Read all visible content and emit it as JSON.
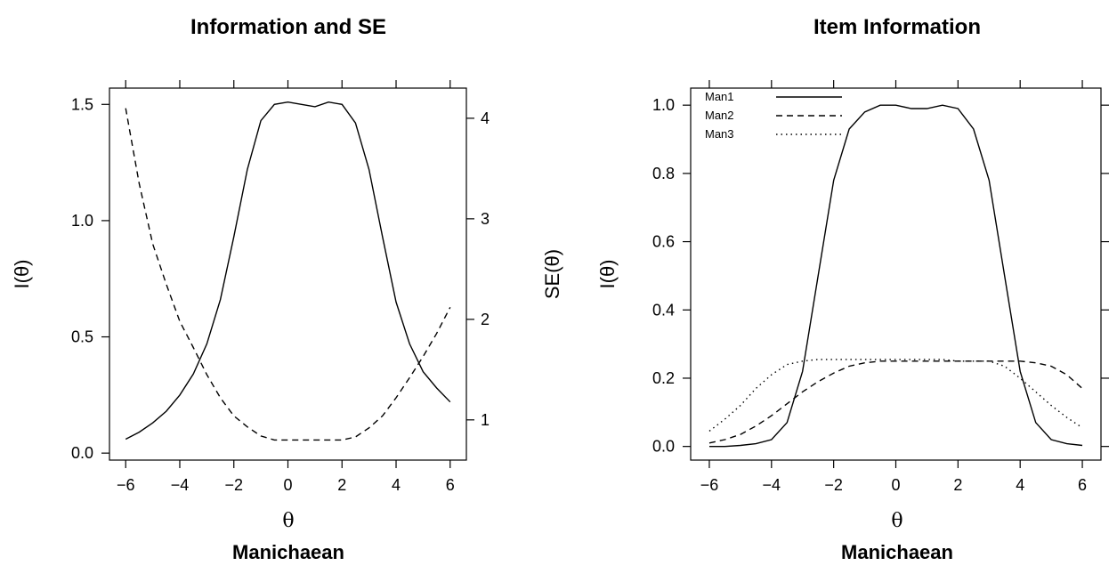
{
  "chart_data": [
    {
      "type": "line",
      "title": "Information and SE",
      "xlabel": "θ",
      "sublabel": "Manichaean",
      "ylabel": "I(θ)",
      "y2label": "SE(θ)",
      "xlim": [
        -6.6,
        6.6
      ],
      "ylim": [
        -0.03,
        1.57
      ],
      "y2lim": [
        0.6,
        4.3
      ],
      "xticks": [
        -6,
        -4,
        -2,
        0,
        2,
        4,
        6
      ],
      "xtick_labels": [
        "−6",
        "−4",
        "−2",
        "0",
        "2",
        "4",
        "6"
      ],
      "yticks": [
        0.0,
        0.5,
        1.0,
        1.5
      ],
      "ytick_labels": [
        "0.0",
        "0.5",
        "1.0",
        "1.5"
      ],
      "y2ticks": [
        1,
        2,
        3,
        4
      ],
      "y2tick_labels": [
        "1",
        "2",
        "3",
        "4"
      ],
      "grid": false,
      "x": [
        -6,
        -5.5,
        -5,
        -4.5,
        -4,
        -3.5,
        -3,
        -2.5,
        -2,
        -1.5,
        -1,
        -0.5,
        0,
        0.5,
        1,
        1.5,
        2,
        2.5,
        3,
        3.5,
        4,
        4.5,
        5,
        5.5,
        6
      ],
      "series": [
        {
          "style": "solid",
          "axis": "left",
          "values": [
            0.06,
            0.09,
            0.13,
            0.18,
            0.25,
            0.34,
            0.47,
            0.66,
            0.93,
            1.22,
            1.43,
            1.5,
            1.51,
            1.5,
            1.49,
            1.51,
            1.5,
            1.42,
            1.22,
            0.93,
            0.65,
            0.47,
            0.35,
            0.28,
            0.22
          ]
        },
        {
          "style": "dashed",
          "axis": "right",
          "values": [
            4.1,
            3.35,
            2.75,
            2.35,
            1.98,
            1.72,
            1.45,
            1.22,
            1.04,
            0.93,
            0.84,
            0.8,
            0.8,
            0.8,
            0.8,
            0.8,
            0.8,
            0.83,
            0.92,
            1.04,
            1.22,
            1.42,
            1.63,
            1.86,
            2.12
          ]
        }
      ]
    },
    {
      "type": "line",
      "title": "Item Information",
      "xlabel": "θ",
      "sublabel": "Manichaean",
      "ylabel": "I(θ)",
      "xlim": [
        -6.6,
        6.6
      ],
      "ylim": [
        -0.04,
        1.05
      ],
      "xticks": [
        -6,
        -4,
        -2,
        0,
        2,
        4,
        6
      ],
      "xtick_labels": [
        "−6",
        "−4",
        "−2",
        "0",
        "2",
        "4",
        "6"
      ],
      "yticks": [
        0.0,
        0.2,
        0.4,
        0.6,
        0.8,
        1.0
      ],
      "ytick_labels": [
        "0.0",
        "0.2",
        "0.4",
        "0.6",
        "0.8",
        "1.0"
      ],
      "grid": false,
      "legend": "top-left",
      "x": [
        -6,
        -5.5,
        -5,
        -4.5,
        -4,
        -3.5,
        -3,
        -2.5,
        -2,
        -1.5,
        -1,
        -0.5,
        0,
        0.5,
        1,
        1.5,
        2,
        2.5,
        3,
        3.5,
        4,
        4.5,
        5,
        5.5,
        6
      ],
      "series": [
        {
          "name": "Man1",
          "style": "solid",
          "values": [
            0.0,
            0.0,
            0.003,
            0.008,
            0.02,
            0.07,
            0.22,
            0.5,
            0.78,
            0.93,
            0.98,
            1.0,
            1.0,
            0.99,
            0.99,
            1.0,
            0.99,
            0.93,
            0.78,
            0.5,
            0.22,
            0.07,
            0.02,
            0.008,
            0.003
          ]
        },
        {
          "name": "Man2",
          "style": "dashed",
          "values": [
            0.01,
            0.02,
            0.035,
            0.06,
            0.09,
            0.125,
            0.16,
            0.19,
            0.215,
            0.235,
            0.245,
            0.25,
            0.25,
            0.25,
            0.25,
            0.25,
            0.25,
            0.25,
            0.25,
            0.25,
            0.25,
            0.245,
            0.235,
            0.21,
            0.17
          ]
        },
        {
          "name": "Man3",
          "style": "dotted",
          "values": [
            0.045,
            0.08,
            0.12,
            0.17,
            0.21,
            0.24,
            0.25,
            0.255,
            0.255,
            0.255,
            0.255,
            0.255,
            0.255,
            0.255,
            0.255,
            0.255,
            0.25,
            0.25,
            0.25,
            0.235,
            0.2,
            0.16,
            0.12,
            0.085,
            0.055
          ]
        }
      ]
    }
  ]
}
